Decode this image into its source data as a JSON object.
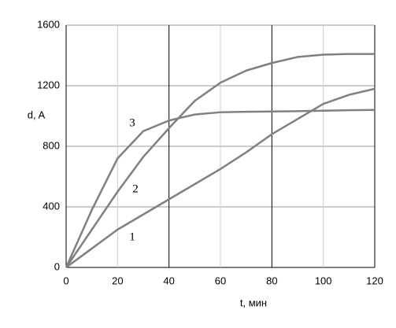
{
  "chart_data": {
    "type": "line",
    "x": [
      0,
      10,
      20,
      30,
      40,
      50,
      60,
      70,
      80,
      90,
      100,
      110,
      120
    ],
    "series": [
      {
        "name": "1",
        "color": "#808080",
        "values": [
          0,
          125,
          250,
          350,
          450,
          550,
          650,
          760,
          880,
          980,
          1080,
          1140,
          1180
        ]
      },
      {
        "name": "2",
        "color": "#808080",
        "values": [
          0,
          250,
          500,
          730,
          920,
          1100,
          1220,
          1300,
          1350,
          1390,
          1405,
          1410,
          1410
        ]
      },
      {
        "name": "3",
        "color": "#808080",
        "values": [
          0,
          380,
          720,
          900,
          970,
          1010,
          1025,
          1028,
          1030,
          1032,
          1035,
          1038,
          1040
        ]
      }
    ],
    "xlabel": "t, мин",
    "ylabel": "d, A",
    "xlim": [
      0,
      120
    ],
    "xticks": [
      0,
      20,
      40,
      60,
      80,
      100,
      120
    ],
    "ylim": [
      0,
      1600
    ],
    "yticks": [
      0,
      400,
      800,
      1200,
      1600
    ],
    "grid": true
  }
}
